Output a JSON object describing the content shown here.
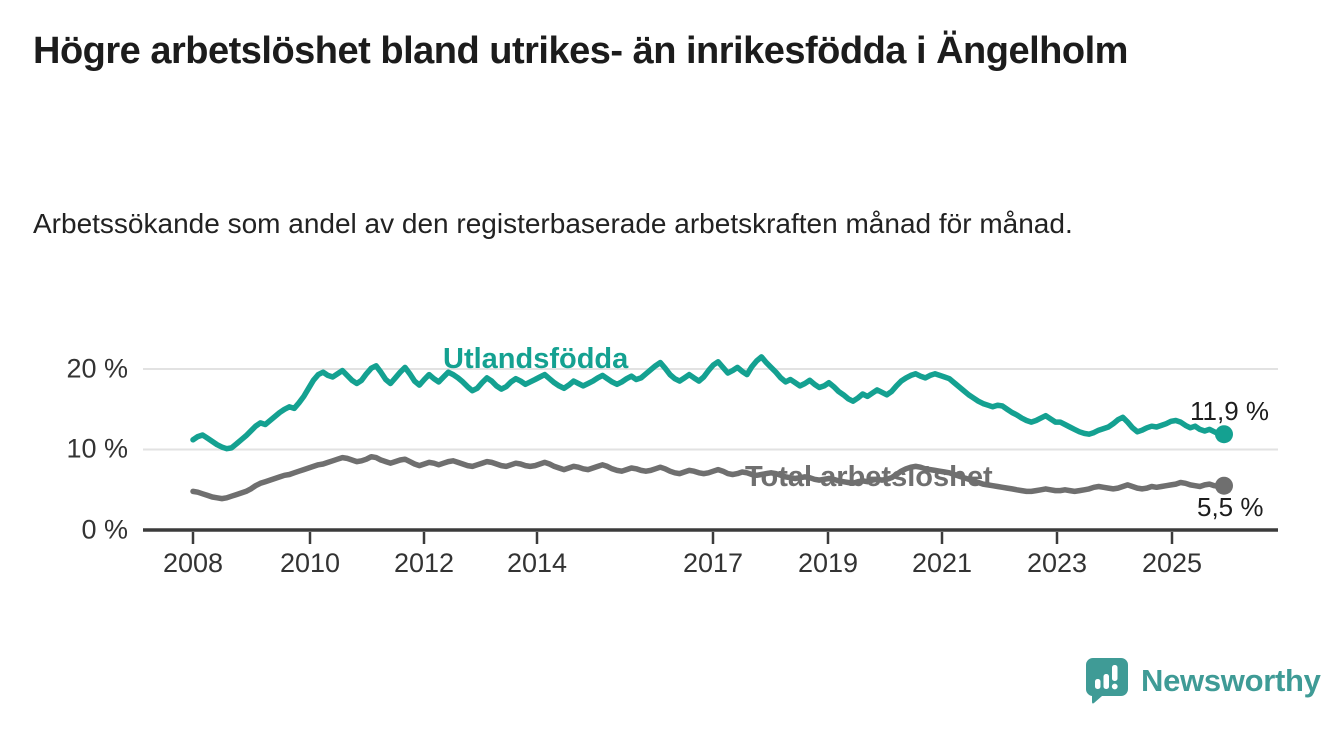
{
  "header": {
    "title": "Högre arbetslöshet bland utrikes- än inrikesfödda i Ängelholm",
    "subtitle": "Arbetssökande som andel av den registerbaserade arbetskraften månad för månad."
  },
  "logo": {
    "text": "Newsworthy"
  },
  "chart_data": {
    "type": "line",
    "title": "Högre arbetslöshet bland utrikes- än inrikesfödda i Ängelholm",
    "subtitle": "Arbetssökande som andel av den registerbaserade arbetskraften månad för månad.",
    "frequency": "monthly",
    "x_start": "2008-01",
    "x_end": "2025-11",
    "x_tick_labels": [
      "2008",
      "2010",
      "2012",
      "2014",
      "2017",
      "2019",
      "2021",
      "2023",
      "2025"
    ],
    "y_tick_labels": [
      "0 %",
      "10 %",
      "20 %"
    ],
    "ylim": [
      0,
      23
    ],
    "grid": "horizontal",
    "legend_position": "inline-labels",
    "colors": {
      "utlandsfodda": "#14a191",
      "total": "#6f6f6f",
      "gridline": "#e2e2e2",
      "axis": "#3b3b3b",
      "logo_teal": "#3f9b96"
    },
    "series": [
      {
        "name": "Utlandsfödda",
        "end_label": "11,9 %",
        "end_value": 11.9,
        "color": "#14a191",
        "values": [
          11.2,
          11.6,
          11.8,
          11.4,
          11.0,
          10.6,
          10.3,
          10.1,
          10.2,
          10.7,
          11.2,
          11.7,
          12.3,
          12.9,
          13.3,
          13.1,
          13.6,
          14.1,
          14.6,
          15.0,
          15.3,
          15.1,
          15.8,
          16.6,
          17.6,
          18.6,
          19.3,
          19.6,
          19.2,
          19.0,
          19.4,
          19.8,
          19.2,
          18.6,
          18.2,
          18.6,
          19.4,
          20.1,
          20.4,
          19.6,
          18.7,
          18.2,
          18.9,
          19.6,
          20.2,
          19.4,
          18.5,
          18.0,
          18.7,
          19.3,
          18.8,
          18.4,
          19.0,
          19.6,
          19.3,
          18.9,
          18.4,
          17.8,
          17.3,
          17.6,
          18.3,
          18.9,
          18.5,
          17.9,
          17.5,
          17.8,
          18.4,
          18.8,
          18.5,
          18.1,
          18.4,
          18.7,
          19.0,
          19.3,
          18.8,
          18.3,
          17.9,
          17.6,
          18.0,
          18.5,
          18.2,
          17.9,
          18.2,
          18.5,
          18.9,
          19.2,
          18.8,
          18.4,
          18.1,
          18.4,
          18.8,
          19.1,
          18.7,
          18.9,
          19.4,
          19.9,
          20.4,
          20.8,
          20.1,
          19.3,
          18.8,
          18.5,
          18.9,
          19.3,
          18.9,
          18.5,
          19.0,
          19.8,
          20.5,
          20.9,
          20.2,
          19.5,
          19.8,
          20.2,
          19.7,
          19.3,
          20.3,
          21.0,
          21.5,
          20.8,
          20.2,
          19.6,
          18.9,
          18.4,
          18.7,
          18.3,
          17.9,
          18.2,
          18.6,
          18.1,
          17.7,
          17.9,
          18.3,
          17.8,
          17.2,
          16.8,
          16.3,
          16.0,
          16.4,
          16.9,
          16.6,
          17.0,
          17.4,
          17.1,
          16.8,
          17.2,
          17.9,
          18.5,
          18.9,
          19.2,
          19.4,
          19.1,
          18.9,
          19.2,
          19.4,
          19.2,
          19.0,
          18.8,
          18.3,
          17.8,
          17.3,
          16.8,
          16.4,
          16.0,
          15.7,
          15.5,
          15.3,
          15.5,
          15.4,
          15.0,
          14.6,
          14.3,
          13.9,
          13.6,
          13.4,
          13.6,
          13.9,
          14.2,
          13.8,
          13.4,
          13.4,
          13.1,
          12.8,
          12.5,
          12.2,
          12.0,
          11.9,
          12.1,
          12.4,
          12.6,
          12.8,
          13.2,
          13.7,
          14.0,
          13.4,
          12.7,
          12.2,
          12.4,
          12.7,
          12.9,
          12.8,
          13.0,
          13.2,
          13.5,
          13.6,
          13.4,
          13.0,
          12.7,
          12.9,
          12.5,
          12.3,
          12.5,
          12.2,
          11.9,
          11.9
        ]
      },
      {
        "name": "Total arbetslöshet",
        "end_label": "5,5 %",
        "end_value": 5.5,
        "color": "#6f6f6f",
        "values": [
          4.8,
          4.7,
          4.5,
          4.3,
          4.1,
          4.0,
          3.9,
          4.0,
          4.2,
          4.4,
          4.6,
          4.8,
          5.1,
          5.5,
          5.8,
          6.0,
          6.2,
          6.4,
          6.6,
          6.8,
          6.9,
          7.1,
          7.3,
          7.5,
          7.7,
          7.9,
          8.1,
          8.2,
          8.4,
          8.6,
          8.8,
          9.0,
          8.9,
          8.7,
          8.5,
          8.6,
          8.8,
          9.1,
          9.0,
          8.7,
          8.5,
          8.3,
          8.5,
          8.7,
          8.8,
          8.5,
          8.2,
          8.0,
          8.2,
          8.4,
          8.3,
          8.1,
          8.3,
          8.5,
          8.6,
          8.4,
          8.2,
          8.0,
          7.9,
          8.1,
          8.3,
          8.5,
          8.4,
          8.2,
          8.0,
          7.9,
          8.1,
          8.3,
          8.2,
          8.0,
          7.9,
          8.0,
          8.2,
          8.4,
          8.2,
          7.9,
          7.7,
          7.5,
          7.7,
          7.9,
          7.8,
          7.6,
          7.5,
          7.7,
          7.9,
          8.1,
          7.9,
          7.6,
          7.4,
          7.3,
          7.5,
          7.7,
          7.6,
          7.4,
          7.3,
          7.4,
          7.6,
          7.8,
          7.6,
          7.3,
          7.1,
          7.0,
          7.2,
          7.4,
          7.3,
          7.1,
          7.0,
          7.1,
          7.3,
          7.5,
          7.3,
          7.0,
          6.9,
          7.0,
          7.2,
          7.1,
          6.9,
          6.8,
          6.9,
          7.0,
          7.1,
          7.0,
          6.8,
          6.6,
          6.5,
          6.4,
          6.5,
          6.6,
          6.5,
          6.3,
          6.2,
          6.3,
          6.4,
          6.3,
          6.1,
          6.0,
          5.9,
          5.8,
          6.0,
          6.1,
          6.0,
          6.2,
          6.3,
          6.2,
          6.3,
          6.5,
          6.9,
          7.3,
          7.6,
          7.8,
          7.9,
          7.8,
          7.6,
          7.5,
          7.4,
          7.3,
          7.2,
          7.1,
          6.9,
          6.7,
          6.5,
          6.3,
          6.1,
          5.9,
          5.7,
          5.6,
          5.5,
          5.4,
          5.3,
          5.2,
          5.1,
          5.0,
          4.9,
          4.8,
          4.8,
          4.9,
          5.0,
          5.1,
          5.0,
          4.9,
          4.9,
          5.0,
          4.9,
          4.8,
          4.9,
          5.0,
          5.1,
          5.3,
          5.4,
          5.3,
          5.2,
          5.1,
          5.2,
          5.4,
          5.6,
          5.4,
          5.2,
          5.1,
          5.2,
          5.4,
          5.3,
          5.4,
          5.5,
          5.6,
          5.7,
          5.9,
          5.8,
          5.6,
          5.5,
          5.4,
          5.6,
          5.7,
          5.5,
          5.4,
          5.5
        ]
      }
    ]
  }
}
